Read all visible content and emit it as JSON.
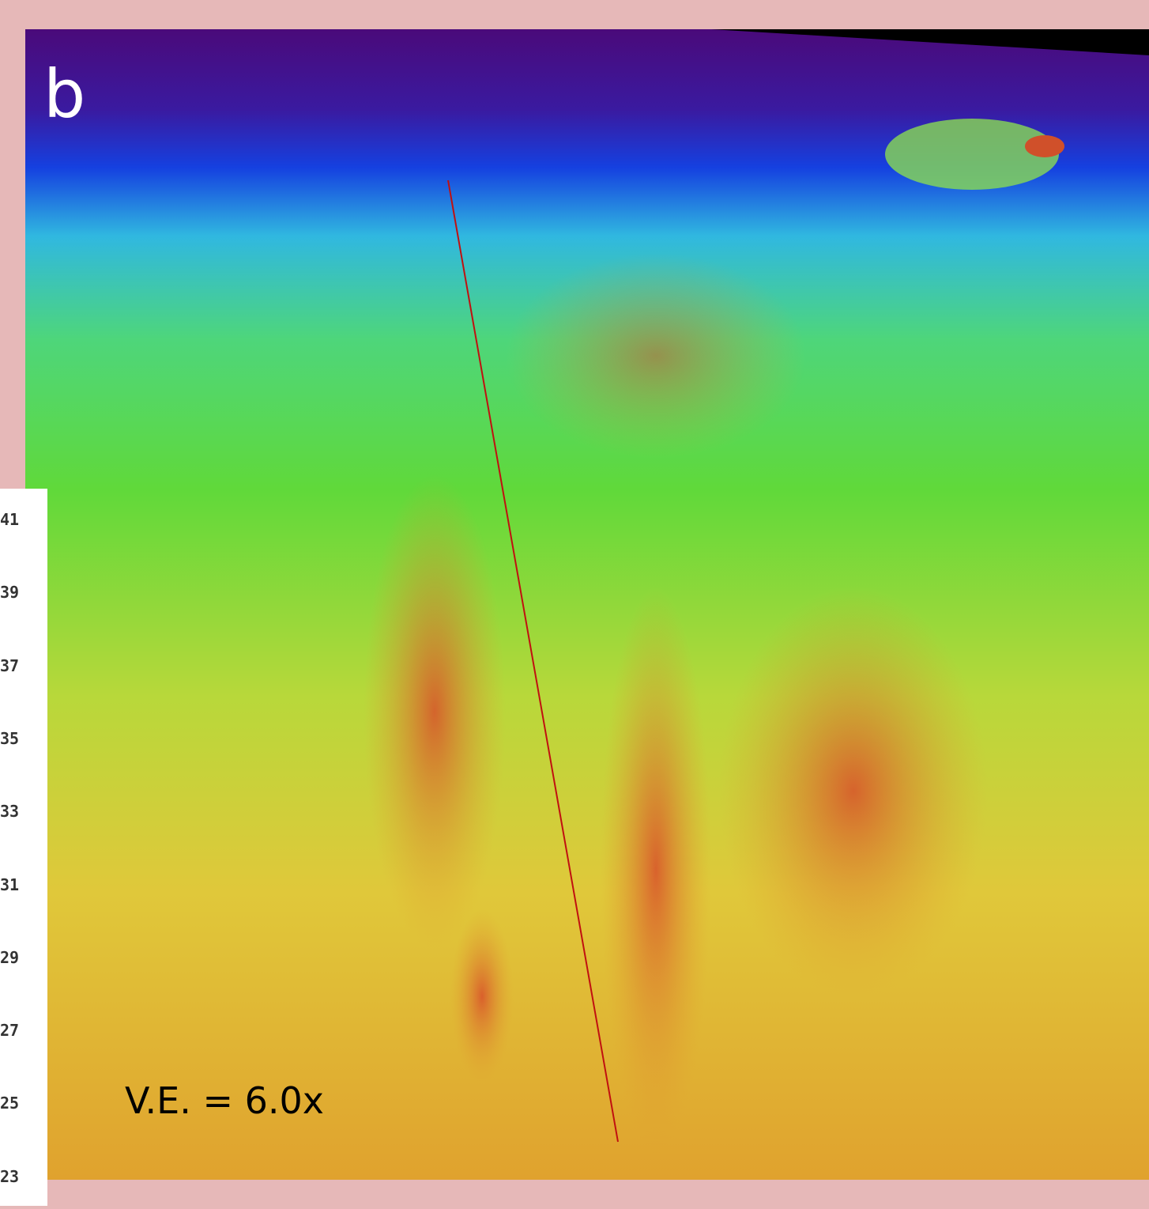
{
  "panel_label": "b",
  "annotation": "V.E. = 6.0x",
  "left_labels": [
    "41",
    "39",
    "37",
    "35",
    "33",
    "31",
    "29",
    "27",
    "25",
    "23"
  ]
}
